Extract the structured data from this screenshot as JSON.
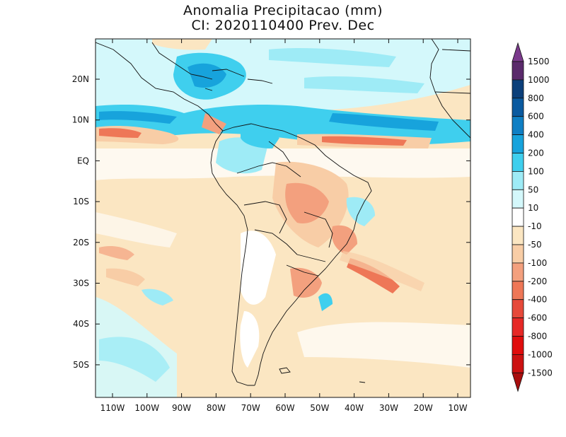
{
  "title": {
    "line1": "Anomalia Precipitacao (mm)",
    "line2": "CI: 2020110400 Prev. Dec"
  },
  "axes": {
    "lat_labels": [
      "20N",
      "10N",
      "EQ",
      "10S",
      "20S",
      "30S",
      "40S",
      "50S"
    ],
    "lon_labels": [
      "110W",
      "100W",
      "90W",
      "80W",
      "70W",
      "60W",
      "50W",
      "40W",
      "30W",
      "20W",
      "10W"
    ]
  },
  "colorbar": {
    "labels": [
      "1500",
      "1000",
      "800",
      "600",
      "400",
      "200",
      "100",
      "50",
      "10",
      "-10",
      "-50",
      "-100",
      "-200",
      "-400",
      "-600",
      "-800",
      "-1000",
      "-1500"
    ],
    "colors": [
      "#7b3a8c",
      "#5a2a6b",
      "#0b3f7a",
      "#0a5aa0",
      "#0f7fc4",
      "#17a3dc",
      "#3fcfee",
      "#9eebf6",
      "#d4f8fb",
      "#ffffff",
      "#fbe6c2",
      "#f8cda6",
      "#f3a07e",
      "#ee7757",
      "#e6493a",
      "#e62826",
      "#e00d0d",
      "#cc1111",
      "#a80e0e"
    ]
  }
}
